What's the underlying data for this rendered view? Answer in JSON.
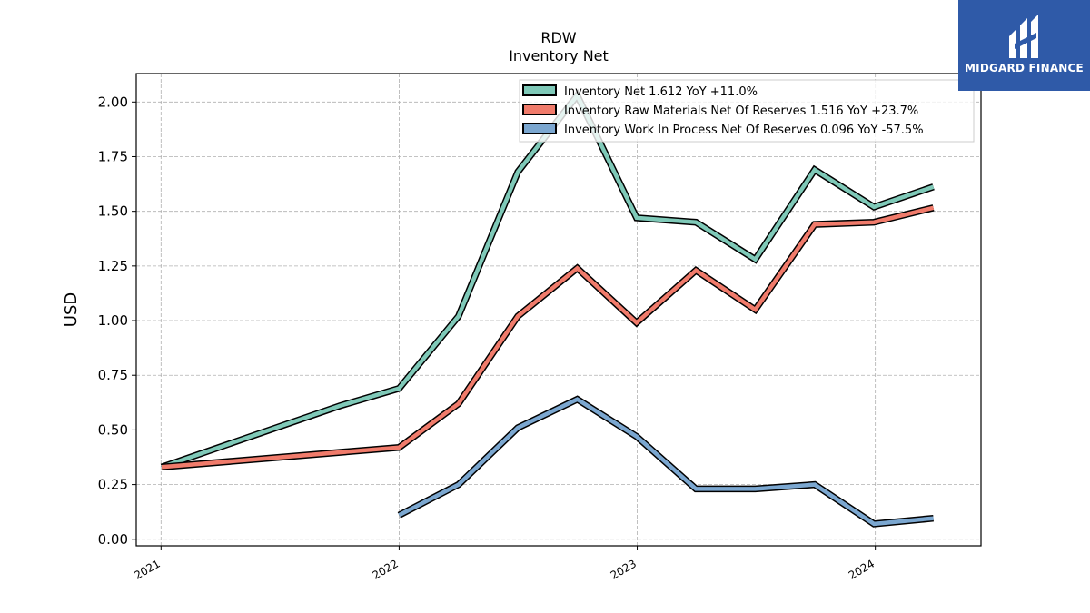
{
  "chart_data": {
    "type": "line",
    "title": "RDW",
    "subtitle": "Inventory Net",
    "ylabel": "USD",
    "xlabel": "",
    "ylim": [
      -0.03,
      2.13
    ],
    "yticks": [
      "0.00",
      "0.25",
      "0.50",
      "0.75",
      "1.00",
      "1.25",
      "1.50",
      "1.75",
      "2.00"
    ],
    "xticks": [
      "2021",
      "2022",
      "2023",
      "2024"
    ],
    "grid": true,
    "legend_position": "upper-right",
    "series": [
      {
        "name": "Inventory Net  1.612 YoY +11.0%",
        "color": "#7fc9b8",
        "x": [
          "2021-01-02",
          "2021-10-02",
          "2022-01-01",
          "2022-04-02",
          "2022-07-02",
          "2022-10-01",
          "2022-12-31",
          "2023-04-01",
          "2023-07-01",
          "2023-09-30",
          "2023-12-30",
          "2024-03-30"
        ],
        "y": [
          0.33,
          0.61,
          0.69,
          1.02,
          1.68,
          2.03,
          1.47,
          1.45,
          1.28,
          1.69,
          1.52,
          1.612
        ]
      },
      {
        "name": "Inventory Raw Materials Net Of Reserves  1.516 YoY +23.7%",
        "color": "#f07b6b",
        "x": [
          "2021-01-02",
          "2022-01-01",
          "2022-04-02",
          "2022-07-02",
          "2022-10-01",
          "2022-12-31",
          "2023-04-01",
          "2023-07-01",
          "2023-09-30",
          "2023-12-30",
          "2024-03-30"
        ],
        "y": [
          0.33,
          0.42,
          0.62,
          1.02,
          1.24,
          0.99,
          1.23,
          1.05,
          1.44,
          1.45,
          1.516
        ]
      },
      {
        "name": "Inventory Work In Process Net Of Reserves  0.096 YoY -57.5%",
        "color": "#7ba7d0",
        "x": [
          "2022-01-01",
          "2022-04-02",
          "2022-07-02",
          "2022-10-01",
          "2022-12-31",
          "2023-04-01",
          "2023-07-01",
          "2023-09-30",
          "2023-12-30",
          "2024-03-30"
        ],
        "y": [
          0.11,
          0.25,
          0.51,
          0.64,
          0.47,
          0.23,
          0.23,
          0.25,
          0.07,
          0.096
        ]
      }
    ]
  },
  "logo": {
    "text": "MIDGARD FINANCE",
    "background": "#2f5aa8"
  }
}
